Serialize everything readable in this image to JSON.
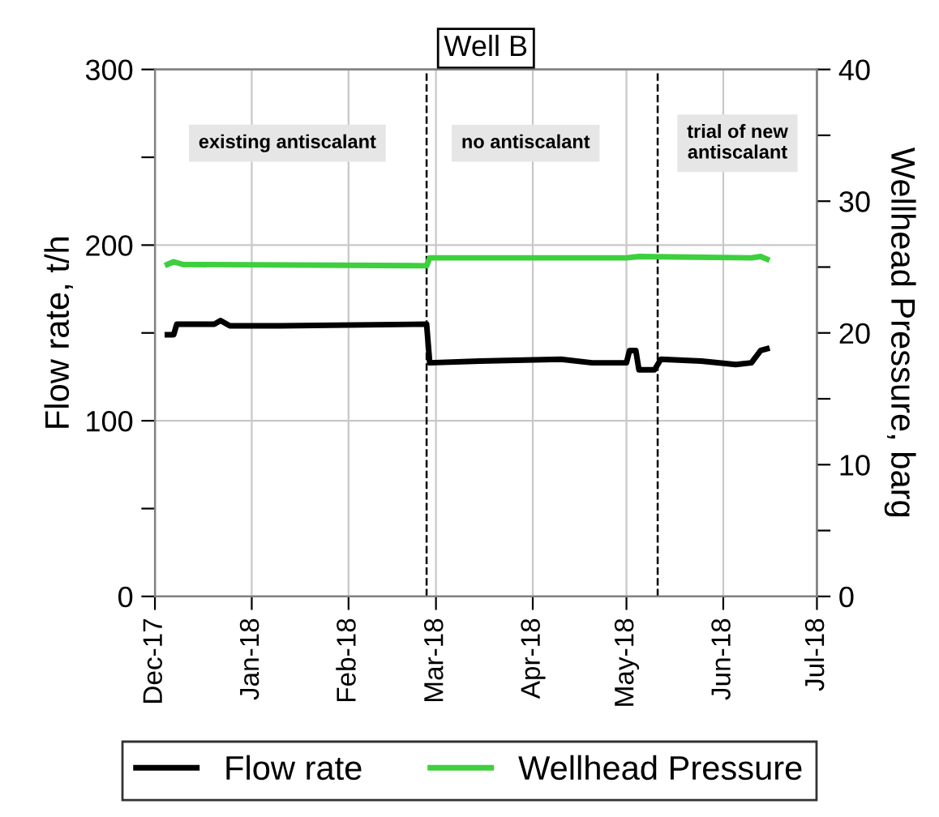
{
  "chart_data": {
    "type": "line",
    "title": "Well B",
    "ylabel": "Flow rate, t/h",
    "y2label": "Wellhead Pressure, barg",
    "xlim": [
      "2017-12-01",
      "2018-07-01"
    ],
    "xticks": [
      {
        "value": "2017-12-01",
        "label": "Dec-17"
      },
      {
        "value": "2018-01-01",
        "label": "Jan-18"
      },
      {
        "value": "2018-02-01",
        "label": "Feb-18"
      },
      {
        "value": "2018-03-01",
        "label": "Mar-18"
      },
      {
        "value": "2018-04-01",
        "label": "Apr-18"
      },
      {
        "value": "2018-05-01",
        "label": "May-18"
      },
      {
        "value": "2018-06-01",
        "label": "Jun-18"
      },
      {
        "value": "2018-07-01",
        "label": "Jul-18"
      }
    ],
    "ylim": [
      0,
      300
    ],
    "yticks": [
      0,
      {
        "value": 50,
        "label": null
      },
      100,
      {
        "value": 150,
        "label": null
      },
      200,
      {
        "value": 250,
        "label": null
      },
      300
    ],
    "y2lim": [
      0,
      40
    ],
    "y2ticks": [
      0,
      {
        "value": 5,
        "label": null
      },
      10,
      {
        "value": 15,
        "label": null
      },
      20,
      {
        "value": 25,
        "label": null
      },
      30,
      {
        "value": 35,
        "label": null
      },
      40
    ],
    "grid": true,
    "legend": "bottom",
    "line_style": "solid",
    "series": [
      {
        "name": "Flow rate",
        "color": "#000000",
        "x": [
          "2017-12-05",
          "2017-12-07",
          "2017-12-08",
          "2017-12-20",
          "2017-12-22",
          "2017-12-25",
          "2018-01-10",
          "2018-02-26",
          "2018-02-27",
          "2018-03-15",
          "2018-04-10",
          "2018-04-20",
          "2018-05-01",
          "2018-05-02",
          "2018-05-04",
          "2018-05-05",
          "2018-05-10",
          "2018-05-12",
          "2018-05-25",
          "2018-06-05",
          "2018-06-10",
          "2018-06-13",
          "2018-06-15"
        ],
        "values": [
          149,
          149,
          155,
          155,
          157,
          154,
          154,
          155,
          133,
          134,
          135,
          133,
          133,
          140,
          140,
          129,
          129,
          135,
          134,
          132,
          133,
          140,
          141
        ]
      },
      {
        "name": "Wellhead Pressure",
        "color": "#3ecf3e",
        "axis": "y2",
        "x": [
          "2017-12-05",
          "2017-12-07",
          "2017-12-10",
          "2018-02-26",
          "2018-02-27",
          "2018-05-01",
          "2018-05-05",
          "2018-06-10",
          "2018-06-13",
          "2018-06-15"
        ],
        "values": [
          25.2,
          25.4,
          25.2,
          25.1,
          25.7,
          25.7,
          25.8,
          25.7,
          25.8,
          25.6
        ]
      }
    ],
    "ref_lines": [
      {
        "axis": "x",
        "value": "2018-02-26",
        "color": "#000000",
        "line_style": "dashed"
      },
      {
        "axis": "x",
        "value": "2018-05-11",
        "color": "#000000",
        "line_style": "dashed"
      }
    ],
    "annotations": [
      "existing antiscalant",
      "no antiscalant",
      "trial of new\nantiscalant"
    ]
  }
}
